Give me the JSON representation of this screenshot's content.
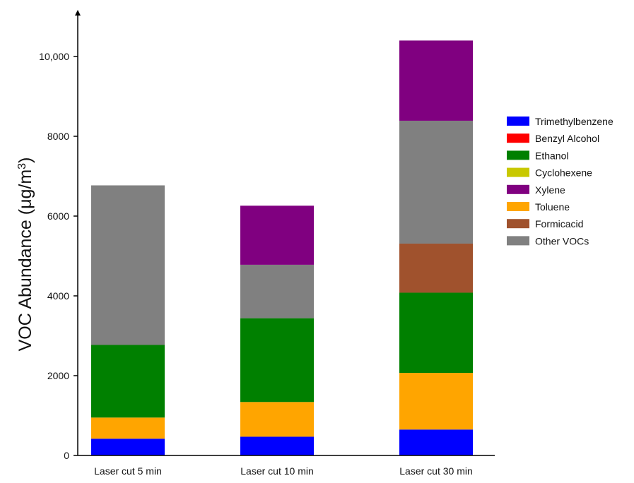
{
  "chart_data": {
    "type": "bar",
    "stacked": true,
    "categories": [
      "Laser cut 5 min",
      "Laser cut 10 min",
      "Laser cut 30 min"
    ],
    "series": [
      {
        "name": "Trimethylbenzene",
        "color": "#0000ff",
        "values": [
          420,
          470,
          650
        ]
      },
      {
        "name": "Benzyl Alcohol",
        "color": "#ff0000",
        "values": [
          0,
          0,
          0
        ]
      },
      {
        "name": "Ethanol",
        "color": "#008000",
        "values": [
          1820,
          2100,
          2010
        ]
      },
      {
        "name": "Cyclohexene",
        "color": "#c8c800",
        "values": [
          0,
          0,
          0
        ]
      },
      {
        "name": "Xylene",
        "color": "#800080",
        "values": [
          0,
          1480,
          2010
        ]
      },
      {
        "name": "Toluene",
        "color": "#ffa500",
        "values": [
          530,
          870,
          1420
        ]
      },
      {
        "name": "Formicacid",
        "color": "#a0522d",
        "values": [
          0,
          0,
          1230
        ]
      },
      {
        "name": "Other VOCs",
        "color": "#808080",
        "values": [
          4000,
          1340,
          3080
        ]
      }
    ],
    "stack_order": [
      "Trimethylbenzene",
      "Toluene",
      "Ethanol",
      "Formicacid",
      "Other VOCs",
      "Xylene"
    ],
    "y_ticks": [
      0,
      2000,
      4000,
      6000,
      8000,
      10000
    ],
    "y_tick_labels": [
      "0",
      "2000",
      "4000",
      "6000",
      "8000",
      "10,000"
    ],
    "ylim": [
      0,
      11000
    ],
    "xlabel": "",
    "ylabel": "VOC Abundance (μg/m³)",
    "ylabel_main": "VOC Abundance (μg/m",
    "ylabel_sup": "3",
    "ylabel_end": ")",
    "title": "",
    "grid": false,
    "legend_position": "right"
  }
}
